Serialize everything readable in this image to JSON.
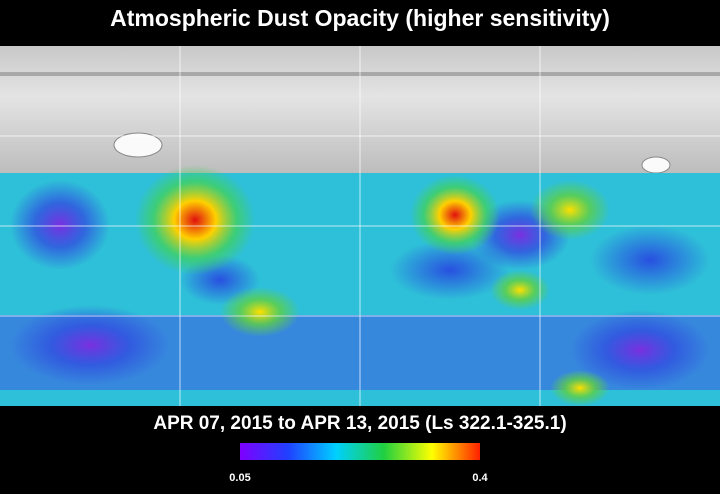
{
  "title": "Atmospheric Dust Opacity (higher sensitivity)",
  "subtitle": "APR 07, 2015 to APR 13, 2015 (Ls 322.1-325.1)",
  "colorbar": {
    "min": 0.05,
    "max": 0.4
  }
}
